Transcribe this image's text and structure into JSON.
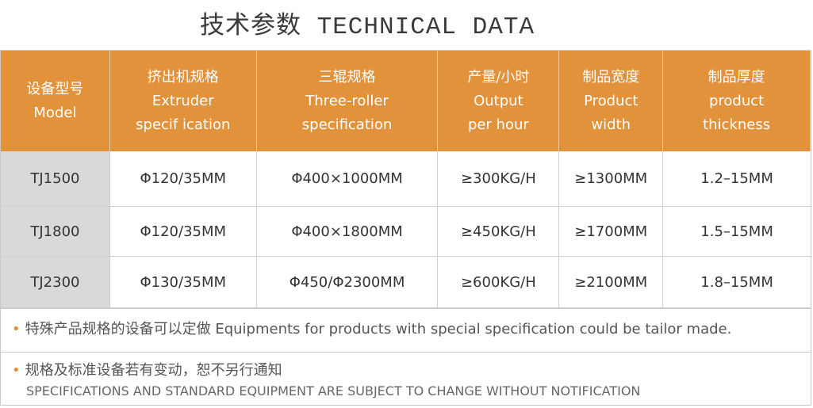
{
  "title": "技术参数 TECHNICAL DATA",
  "accent": "#E3923C",
  "headers": [
    {
      "cn": "设备型号",
      "en": "Model"
    },
    {
      "cn": "挤出机规格",
      "en": "Extruder",
      "en2": "specif ication"
    },
    {
      "cn": "三辊规格",
      "en": "Three-roller",
      "en2": "specification"
    },
    {
      "cn": "产量/小时",
      "en": "Output",
      "en2": "per hour"
    },
    {
      "cn": "制品宽度",
      "en": "Product",
      "en2": "width"
    },
    {
      "cn": "制品厚度",
      "en": "product",
      "en2": "thickness"
    }
  ],
  "rows": [
    [
      "TJ1500",
      "Φ120/35MM",
      "Φ400×1000MM",
      "≥300KG/H",
      "≥1300MM",
      "1.2–15MM"
    ],
    [
      "TJ1800",
      "Φ120/35MM",
      "Φ400×1800MM",
      "≥450KG/H",
      "≥1700MM",
      "1.5–15MM"
    ],
    [
      "TJ2300",
      "Φ130/35MM",
      "Φ450/Φ2300MM",
      "≥600KG/H",
      "≥2100MM",
      "1.8–15MM"
    ]
  ],
  "notes": {
    "n1": "特殊产品规格的设备可以定做 Equipments for products with special specification could be tailor made.",
    "n2_cn": "规格及标准设备若有变动，恕不另行通知",
    "n2_en": "SPECIFICATIONS AND STANDARD EQUIPMENT ARE SUBJECT TO CHANGE WITHOUT NOTIFICATION",
    "bullet": "•"
  }
}
